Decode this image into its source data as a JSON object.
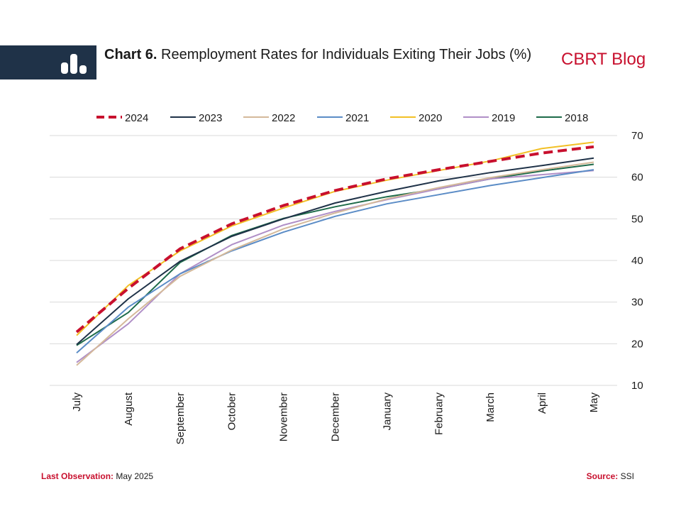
{
  "header": {
    "chart_number": "Chart 6.",
    "title": "Reemployment Rates for Individuals Exiting Their Jobs (%)",
    "brand": "CBRT Blog"
  },
  "footer": {
    "last_obs_label": "Last Observation:",
    "last_obs_value": "May 2025",
    "source_label": "Source:",
    "source_value": "SSI"
  },
  "chart_data": {
    "type": "line",
    "title": "Reemployment Rates for Individuals Exiting Their Jobs (%)",
    "xlabel": "",
    "ylabel": "",
    "ylim": [
      10,
      70
    ],
    "yticks": [
      10,
      20,
      30,
      40,
      50,
      60,
      70
    ],
    "y_axis_side": "right",
    "grid": true,
    "legend_position": "top",
    "categories": [
      "July",
      "August",
      "September",
      "October",
      "November",
      "December",
      "January",
      "February",
      "March",
      "April",
      "May"
    ],
    "series": [
      {
        "name": "2024",
        "color": "#c8102e",
        "dashed": true,
        "values": [
          22.8,
          33.3,
          42.8,
          48.8,
          53.2,
          56.8,
          59.6,
          61.8,
          63.8,
          65.8,
          67.3
        ]
      },
      {
        "name": "2023",
        "color": "#1f3248",
        "dashed": false,
        "values": [
          19.8,
          30.8,
          39.8,
          45.8,
          50.0,
          53.8,
          56.6,
          59.1,
          61.1,
          62.8,
          64.6
        ]
      },
      {
        "name": "2022",
        "color": "#d4b99a",
        "dashed": false,
        "values": [
          14.8,
          26.0,
          36.2,
          42.5,
          47.6,
          51.4,
          54.8,
          57.5,
          59.9,
          61.8,
          63.6
        ]
      },
      {
        "name": "2021",
        "color": "#5b8cc6",
        "dashed": false,
        "values": [
          17.8,
          28.8,
          36.8,
          42.3,
          46.8,
          50.6,
          53.6,
          55.8,
          58.0,
          59.9,
          61.8
        ]
      },
      {
        "name": "2020",
        "color": "#f2c026",
        "dashed": false,
        "values": [
          22.0,
          34.0,
          42.3,
          48.3,
          52.6,
          56.6,
          59.3,
          61.6,
          63.9,
          66.9,
          68.4
        ]
      },
      {
        "name": "2019",
        "color": "#b08fc7",
        "dashed": false,
        "values": [
          15.5,
          24.8,
          36.8,
          43.8,
          48.5,
          51.8,
          54.6,
          57.2,
          59.6,
          60.6,
          61.6
        ]
      },
      {
        "name": "2018",
        "color": "#1e6b4a",
        "dashed": false,
        "values": [
          19.6,
          27.5,
          39.5,
          46.0,
          50.1,
          52.9,
          55.3,
          57.2,
          59.6,
          61.5,
          63.1
        ]
      }
    ]
  }
}
